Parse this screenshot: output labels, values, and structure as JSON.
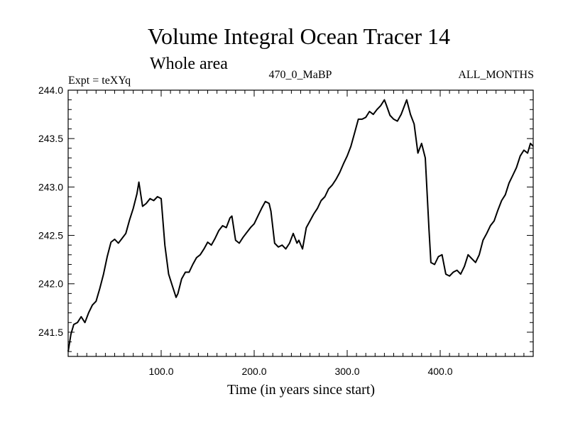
{
  "chart_data": {
    "type": "line",
    "title": "Volume Integral Ocean Tracer 14",
    "subtitle": "Whole area",
    "left_label": "Expt = teXYq",
    "center_label": "470_0_MaBP",
    "right_label": "ALL_MONTHS",
    "xlabel": "Time (in years since start)",
    "ylabel": "",
    "xlim": [
      0,
      500
    ],
    "ylim": [
      241.25,
      244.0
    ],
    "xticks": [
      100,
      200,
      300,
      400
    ],
    "xtick_labels": [
      "100.0",
      "200.0",
      "300.0",
      "400.0"
    ],
    "yticks": [
      241.5,
      242.0,
      242.5,
      243.0,
      243.5,
      244.0
    ],
    "ytick_labels": [
      "241.5",
      "242.0",
      "242.5",
      "243.0",
      "243.5",
      "244.0"
    ],
    "grid": false,
    "line_color": "#000000",
    "series": [
      {
        "x": [
          0,
          3,
          6,
          10,
          14,
          18,
          22,
          26,
          30,
          34,
          38,
          42,
          46,
          50,
          54,
          58,
          62,
          66,
          70,
          74,
          76,
          80,
          84,
          88,
          92,
          96,
          100,
          104,
          108,
          112,
          116,
          118,
          122,
          126,
          130,
          134,
          138,
          142,
          146,
          150,
          154,
          158,
          162,
          166,
          170,
          174,
          176,
          180,
          184,
          188,
          192,
          196,
          200,
          204,
          208,
          212,
          216,
          218,
          222,
          226,
          230,
          234,
          238,
          242,
          246,
          248,
          252,
          256,
          260,
          264,
          268,
          272,
          276,
          280,
          284,
          288,
          292,
          296,
          300,
          304,
          308,
          312,
          316,
          320,
          324,
          328,
          332,
          336,
          340,
          342,
          346,
          350,
          354,
          358,
          362,
          364,
          368,
          372,
          376,
          380,
          384,
          388,
          390,
          394,
          398,
          402,
          406,
          410,
          414,
          418,
          422,
          426,
          430,
          434,
          438,
          442,
          446,
          450,
          454,
          458,
          462,
          466,
          470,
          474,
          478,
          482,
          486,
          490,
          494,
          497,
          500
        ],
        "y": [
          241.3,
          241.48,
          241.58,
          241.6,
          241.66,
          241.6,
          241.7,
          241.78,
          241.82,
          241.95,
          242.1,
          242.28,
          242.43,
          242.46,
          242.42,
          242.47,
          242.52,
          242.66,
          242.78,
          242.93,
          243.05,
          242.8,
          242.83,
          242.88,
          242.86,
          242.9,
          242.88,
          242.4,
          242.1,
          241.98,
          241.86,
          241.9,
          242.05,
          242.12,
          242.12,
          242.2,
          242.27,
          242.3,
          242.36,
          242.43,
          242.4,
          242.47,
          242.55,
          242.6,
          242.58,
          242.68,
          242.7,
          242.45,
          242.42,
          242.48,
          242.53,
          242.58,
          242.62,
          242.7,
          242.78,
          242.85,
          242.83,
          242.75,
          242.42,
          242.38,
          242.4,
          242.36,
          242.42,
          242.52,
          242.42,
          242.45,
          242.36,
          242.58,
          242.65,
          242.72,
          242.78,
          242.86,
          242.9,
          242.98,
          243.02,
          243.08,
          243.15,
          243.24,
          243.32,
          243.42,
          243.56,
          243.7,
          243.7,
          243.72,
          243.78,
          243.75,
          243.8,
          243.84,
          243.9,
          243.85,
          243.74,
          243.7,
          243.68,
          243.75,
          243.85,
          243.9,
          243.75,
          243.65,
          243.35,
          243.45,
          243.3,
          242.55,
          242.22,
          242.2,
          242.28,
          242.3,
          242.1,
          242.08,
          242.12,
          242.14,
          242.1,
          242.18,
          242.3,
          242.26,
          242.22,
          242.3,
          242.45,
          242.52,
          242.6,
          242.65,
          242.76,
          242.86,
          242.92,
          243.04,
          243.12,
          243.2,
          243.32,
          243.38,
          243.35,
          243.45,
          243.42
        ]
      }
    ]
  }
}
